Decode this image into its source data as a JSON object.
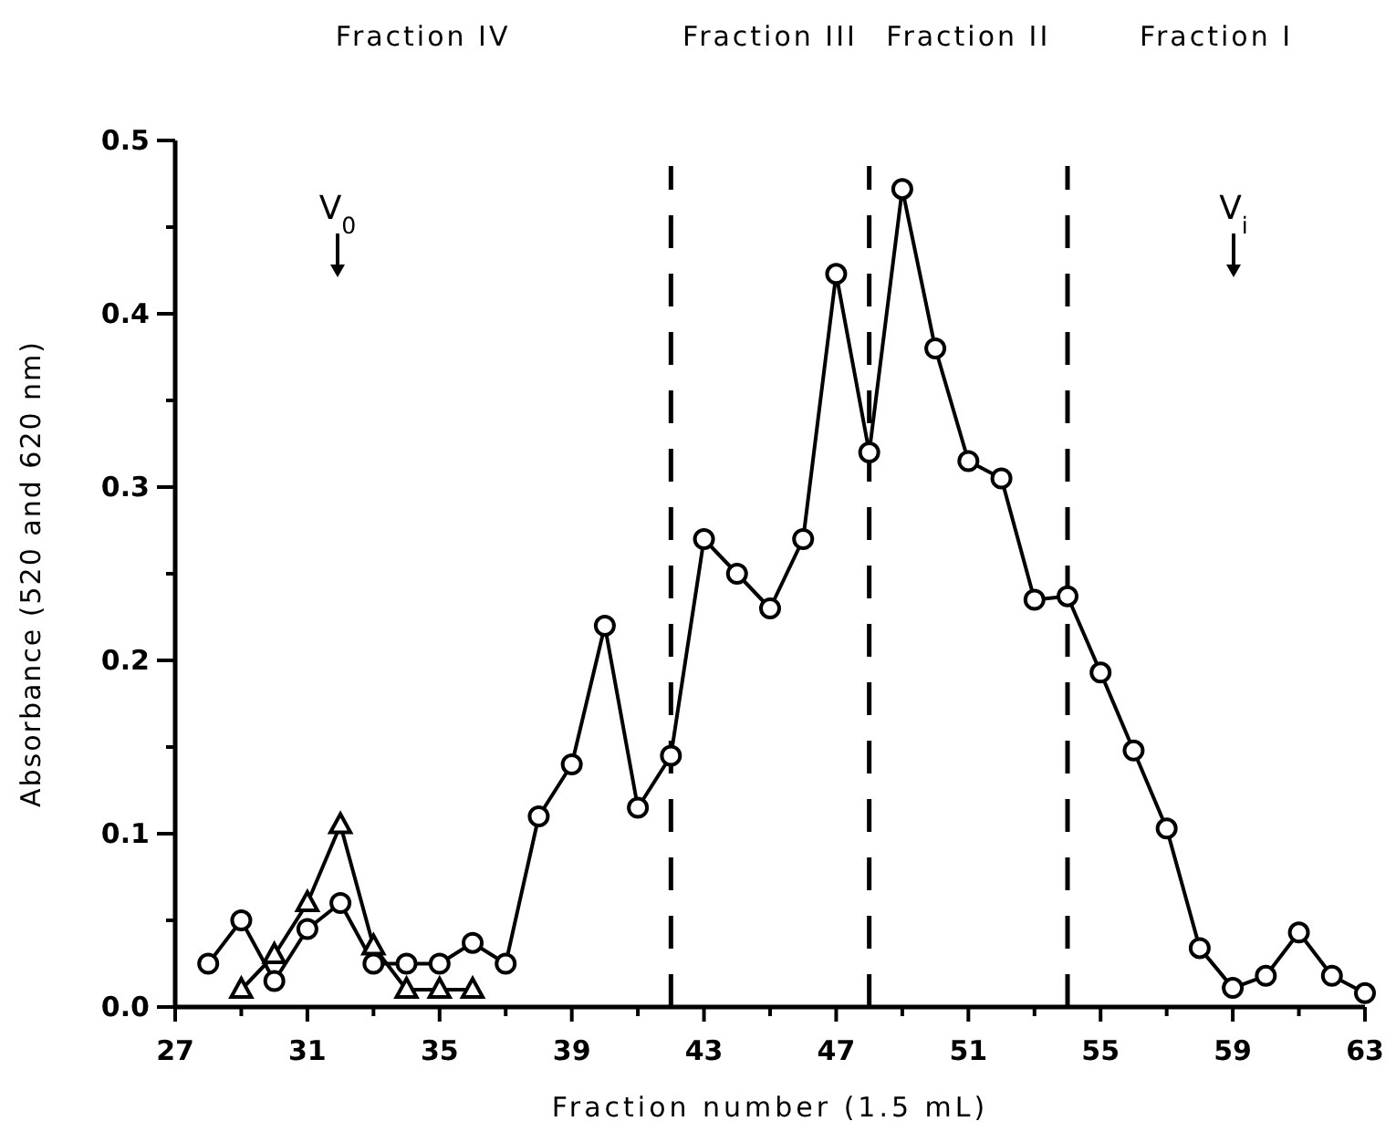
{
  "chart_data": {
    "type": "line",
    "xlabel": "Fraction number (1.5 mL)",
    "ylabel": "Absorbance (520 and 620 nm)",
    "xlim": [
      27,
      63
    ],
    "xticks": [
      27,
      {
        "value": 29,
        "label": null
      },
      31,
      {
        "value": 33,
        "label": null
      },
      35,
      {
        "value": 37,
        "label": null
      },
      39,
      {
        "value": 41,
        "label": null
      },
      43,
      {
        "value": 45,
        "label": null
      },
      47,
      {
        "value": 49,
        "label": null
      },
      51,
      {
        "value": 53,
        "label": null
      },
      55,
      {
        "value": 57,
        "label": null
      },
      59,
      {
        "value": 61,
        "label": null
      },
      63
    ],
    "ylim": [
      0,
      0.5
    ],
    "yticks": [
      {
        "value": 0,
        "label": "0.0"
      },
      {
        "value": 0.05,
        "label": null
      },
      0.1,
      {
        "value": 0.15,
        "label": null
      },
      0.2,
      {
        "value": 0.25,
        "label": null
      },
      0.3,
      {
        "value": 0.35,
        "label": null
      },
      0.4,
      {
        "value": 0.45,
        "label": null
      },
      0.5
    ],
    "grid": false,
    "series": [
      {
        "color": "#000000",
        "marker": "circle",
        "x": [
          28,
          29,
          30,
          31,
          32,
          33,
          34,
          35,
          36,
          37,
          38,
          39,
          40,
          41,
          42,
          43,
          44,
          45,
          46,
          47,
          48,
          49,
          50,
          51,
          52,
          53,
          54,
          55,
          56,
          57,
          58,
          59,
          60,
          61,
          62,
          63
        ],
        "values": [
          0.025,
          0.05,
          0.015,
          0.045,
          0.06,
          0.025,
          0.025,
          0.025,
          0.037,
          0.025,
          0.11,
          0.14,
          0.22,
          0.115,
          0.145,
          0.27,
          0.25,
          0.23,
          0.27,
          0.423,
          0.32,
          0.472,
          0.38,
          0.315,
          0.305,
          0.235,
          0.237,
          0.193,
          0.148,
          0.103,
          0.034,
          0.011,
          0.018,
          0.043,
          0.018,
          0.008
        ]
      },
      {
        "color": "#000000",
        "marker": "triangle",
        "x": [
          29,
          30,
          31,
          32,
          33,
          34,
          35,
          36
        ],
        "values": [
          0.01,
          0.03,
          0.06,
          0.105,
          0.035,
          0.01,
          0.01,
          0.01
        ]
      }
    ],
    "ref_lines": [
      {
        "axis": "x",
        "value": 42,
        "line_style": "dashed",
        "color": "#000000"
      },
      {
        "axis": "x",
        "value": 48,
        "line_style": "dashed",
        "color": "#000000"
      },
      {
        "axis": "x",
        "value": 54,
        "line_style": "dashed",
        "color": "#000000"
      }
    ],
    "annotations": [
      "Fraction IV",
      "Fraction III",
      "Fraction II",
      "Fraction I",
      "V$_{0}$",
      "V$_{i}$"
    ]
  }
}
